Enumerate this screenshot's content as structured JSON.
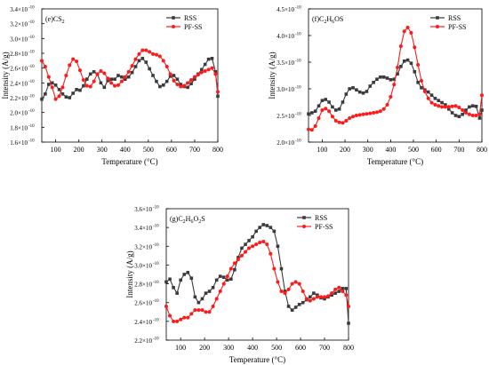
{
  "figure_colors": {
    "rss": "#3a3a3a",
    "pfss": "#ff1a1a"
  },
  "chart_data": [
    {
      "type": "line",
      "panel_label": "(e)CS",
      "panel_sub": "2",
      "panel_tail": "",
      "xlabel": "Temperature (°C)",
      "ylabel": "Intensity (A/g)",
      "xlim": [
        40,
        800
      ],
      "ylim": [
        1.6,
        3.4
      ],
      "xticks": [
        100,
        200,
        300,
        400,
        500,
        600,
        700,
        800
      ],
      "xtick_labels": [
        "100",
        "200",
        "300",
        "400",
        "500",
        "600",
        "700",
        "800"
      ],
      "yticks": [
        1.6,
        1.8,
        2.0,
        2.2,
        2.4,
        2.6,
        2.8,
        3.0,
        3.2,
        3.4
      ],
      "ytick_labels": [
        "1.6×10",
        "1.8×10",
        "2.0×10",
        "2.2×10",
        "2.4×10",
        "2.6×10",
        "2.8×10",
        "3.0×10",
        "3.2×10",
        "3.4×10"
      ],
      "ytick_exp": "-10",
      "legend": "top-right",
      "series": [
        {
          "name": "RSS",
          "x": [
            40,
            55,
            70,
            85,
            100,
            115,
            130,
            145,
            160,
            175,
            190,
            205,
            220,
            235,
            250,
            265,
            280,
            295,
            310,
            325,
            340,
            355,
            370,
            385,
            400,
            415,
            430,
            445,
            460,
            475,
            490,
            505,
            520,
            535,
            550,
            565,
            580,
            595,
            610,
            625,
            640,
            655,
            670,
            685,
            700,
            715,
            730,
            745,
            760,
            775,
            790,
            800
          ],
          "y": [
            2.18,
            2.25,
            2.38,
            2.4,
            2.37,
            2.31,
            2.25,
            2.21,
            2.2,
            2.26,
            2.31,
            2.3,
            2.36,
            2.45,
            2.52,
            2.55,
            2.52,
            2.4,
            2.34,
            2.43,
            2.45,
            2.45,
            2.5,
            2.48,
            2.45,
            2.48,
            2.54,
            2.62,
            2.7,
            2.73,
            2.68,
            2.59,
            2.5,
            2.42,
            2.35,
            2.37,
            2.42,
            2.49,
            2.5,
            2.45,
            2.38,
            2.35,
            2.34,
            2.39,
            2.45,
            2.52,
            2.58,
            2.65,
            2.72,
            2.73,
            2.55,
            2.22
          ]
        },
        {
          "name": "PF-SS",
          "x": [
            40,
            55,
            70,
            85,
            100,
            115,
            130,
            145,
            160,
            175,
            190,
            205,
            220,
            235,
            250,
            265,
            280,
            295,
            310,
            325,
            340,
            355,
            370,
            385,
            400,
            415,
            430,
            445,
            460,
            475,
            490,
            505,
            520,
            535,
            550,
            565,
            580,
            595,
            610,
            625,
            640,
            655,
            670,
            685,
            700,
            715,
            730,
            745,
            760,
            775,
            790,
            800
          ],
          "y": [
            2.7,
            2.62,
            2.48,
            2.34,
            2.18,
            2.22,
            2.34,
            2.5,
            2.64,
            2.72,
            2.69,
            2.57,
            2.44,
            2.36,
            2.35,
            2.42,
            2.52,
            2.56,
            2.53,
            2.46,
            2.4,
            2.36,
            2.37,
            2.42,
            2.48,
            2.55,
            2.63,
            2.72,
            2.79,
            2.84,
            2.84,
            2.82,
            2.79,
            2.78,
            2.76,
            2.7,
            2.62,
            2.52,
            2.43,
            2.38,
            2.35,
            2.36,
            2.4,
            2.44,
            2.48,
            2.51,
            2.54,
            2.56,
            2.58,
            2.6,
            2.52,
            2.28
          ]
        }
      ]
    },
    {
      "type": "line",
      "panel_label": "(f)C",
      "panel_sub": "2",
      "panel_tail": "H",
      "panel_sub2": "6",
      "panel_tail2": "OS",
      "xlabel": "Temperature (°C)",
      "ylabel": "Intensity (A/g)",
      "xlim": [
        40,
        800
      ],
      "ylim": [
        2.0,
        4.5
      ],
      "xticks": [
        100,
        200,
        300,
        400,
        500,
        600,
        700,
        800
      ],
      "xtick_labels": [
        "100",
        "200",
        "300",
        "400",
        "500",
        "600",
        "700",
        "800"
      ],
      "yticks": [
        2.0,
        2.5,
        3.0,
        3.5,
        4.0,
        4.5
      ],
      "ytick_labels": [
        "2.0×10",
        "2.5×10",
        "3.0×10",
        "3.5×10",
        "4.0×10",
        "4.5×10"
      ],
      "ytick_exp": "-10",
      "legend": "top-right",
      "series": [
        {
          "name": "RSS",
          "x": [
            40,
            55,
            70,
            85,
            100,
            115,
            130,
            145,
            160,
            175,
            190,
            205,
            220,
            235,
            250,
            265,
            280,
            295,
            310,
            325,
            340,
            355,
            370,
            385,
            400,
            415,
            430,
            445,
            460,
            475,
            490,
            505,
            520,
            535,
            550,
            565,
            580,
            595,
            610,
            625,
            640,
            655,
            670,
            685,
            700,
            715,
            730,
            745,
            760,
            775,
            790,
            800
          ],
          "y": [
            2.53,
            2.55,
            2.58,
            2.68,
            2.78,
            2.8,
            2.75,
            2.66,
            2.6,
            2.62,
            2.75,
            2.9,
            3.0,
            3.02,
            2.98,
            2.94,
            2.92,
            2.95,
            3.05,
            3.12,
            3.18,
            3.22,
            3.22,
            3.2,
            3.17,
            3.18,
            3.28,
            3.42,
            3.52,
            3.54,
            3.48,
            3.32,
            3.12,
            3.02,
            2.98,
            2.94,
            2.88,
            2.82,
            2.78,
            2.74,
            2.7,
            2.62,
            2.55,
            2.5,
            2.48,
            2.52,
            2.6,
            2.66,
            2.68,
            2.67,
            2.45,
            2.6
          ]
        },
        {
          "name": "PF-SS",
          "x": [
            40,
            55,
            70,
            85,
            100,
            115,
            130,
            145,
            160,
            175,
            190,
            205,
            220,
            235,
            250,
            265,
            280,
            295,
            310,
            325,
            340,
            355,
            370,
            385,
            400,
            415,
            430,
            445,
            460,
            475,
            490,
            505,
            520,
            535,
            550,
            565,
            580,
            595,
            610,
            625,
            640,
            655,
            670,
            685,
            700,
            715,
            730,
            745,
            760,
            775,
            790,
            800
          ],
          "y": [
            2.24,
            2.23,
            2.3,
            2.45,
            2.6,
            2.63,
            2.58,
            2.48,
            2.4,
            2.37,
            2.36,
            2.4,
            2.45,
            2.48,
            2.5,
            2.51,
            2.52,
            2.53,
            2.54,
            2.55,
            2.56,
            2.58,
            2.62,
            2.7,
            2.85,
            3.08,
            3.4,
            3.8,
            4.08,
            4.15,
            4.05,
            3.78,
            3.45,
            3.15,
            2.95,
            2.82,
            2.74,
            2.7,
            2.68,
            2.66,
            2.66,
            2.66,
            2.67,
            2.68,
            2.65,
            2.6,
            2.55,
            2.52,
            2.5,
            2.5,
            2.52,
            2.88
          ]
        }
      ]
    },
    {
      "type": "line",
      "panel_label": "(g)C",
      "panel_sub": "2",
      "panel_tail": "H",
      "panel_sub2": "6",
      "panel_tail2": "O",
      "panel_sub3": "2",
      "panel_tail3": "S",
      "xlabel": "Temperature (°C)",
      "ylabel": "Intensity (A/g)",
      "xlim": [
        40,
        800
      ],
      "ylim": [
        2.2,
        3.6
      ],
      "xticks": [
        100,
        200,
        300,
        400,
        500,
        600,
        700,
        800
      ],
      "xtick_labels": [
        "100",
        "200",
        "300",
        "400",
        "500",
        "600",
        "700",
        "800"
      ],
      "yticks": [
        2.2,
        2.4,
        2.6,
        2.8,
        3.0,
        3.2,
        3.4,
        3.6
      ],
      "ytick_labels": [
        "2.2×10",
        "2.4×10",
        "2.6×10",
        "2.8×10",
        "3.0×10",
        "3.2×10",
        "3.4×10",
        "3.6×10"
      ],
      "ytick_exp": "-10",
      "legend": "top-right",
      "series": [
        {
          "name": "RSS",
          "x": [
            40,
            55,
            70,
            85,
            100,
            115,
            130,
            145,
            160,
            175,
            190,
            205,
            220,
            235,
            250,
            265,
            280,
            295,
            310,
            325,
            340,
            355,
            370,
            385,
            400,
            415,
            430,
            445,
            460,
            475,
            490,
            505,
            520,
            535,
            550,
            565,
            580,
            595,
            610,
            625,
            640,
            655,
            670,
            685,
            700,
            715,
            730,
            745,
            760,
            775,
            790,
            800
          ],
          "y": [
            2.82,
            2.85,
            2.76,
            2.7,
            2.84,
            2.9,
            2.92,
            2.86,
            2.66,
            2.6,
            2.64,
            2.7,
            2.72,
            2.76,
            2.84,
            2.88,
            2.87,
            2.84,
            2.85,
            2.95,
            3.08,
            3.18,
            3.22,
            3.26,
            3.3,
            3.36,
            3.4,
            3.43,
            3.42,
            3.4,
            3.36,
            3.2,
            2.96,
            2.72,
            2.56,
            2.52,
            2.55,
            2.58,
            2.6,
            2.63,
            2.66,
            2.7,
            2.68,
            2.65,
            2.64,
            2.66,
            2.68,
            2.7,
            2.72,
            2.75,
            2.75,
            2.38
          ]
        },
        {
          "name": "PF-SS",
          "x": [
            40,
            55,
            70,
            85,
            100,
            115,
            130,
            145,
            160,
            175,
            190,
            205,
            220,
            235,
            250,
            265,
            280,
            295,
            310,
            325,
            340,
            355,
            370,
            385,
            400,
            415,
            430,
            445,
            460,
            475,
            490,
            505,
            520,
            535,
            550,
            565,
            580,
            595,
            610,
            625,
            640,
            655,
            670,
            685,
            700,
            715,
            730,
            745,
            760,
            775,
            790,
            800
          ],
          "y": [
            2.56,
            2.46,
            2.4,
            2.4,
            2.42,
            2.44,
            2.44,
            2.48,
            2.52,
            2.52,
            2.52,
            2.5,
            2.5,
            2.56,
            2.64,
            2.72,
            2.8,
            2.88,
            2.96,
            3.02,
            3.06,
            3.1,
            3.14,
            3.18,
            3.2,
            3.22,
            3.24,
            3.25,
            3.22,
            3.12,
            2.96,
            2.82,
            2.72,
            2.7,
            2.74,
            2.8,
            2.82,
            2.8,
            2.72,
            2.64,
            2.62,
            2.64,
            2.66,
            2.66,
            2.66,
            2.67,
            2.7,
            2.74,
            2.76,
            2.72,
            2.68,
            2.56
          ]
        }
      ]
    }
  ]
}
